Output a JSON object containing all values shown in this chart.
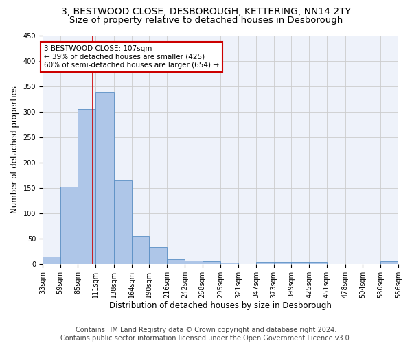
{
  "title1": "3, BESTWOOD CLOSE, DESBOROUGH, KETTERING, NN14 2TY",
  "title2": "Size of property relative to detached houses in Desborough",
  "xlabel": "Distribution of detached houses by size in Desborough",
  "ylabel": "Number of detached properties",
  "footer1": "Contains HM Land Registry data © Crown copyright and database right 2024.",
  "footer2": "Contains public sector information licensed under the Open Government Licence v3.0.",
  "bin_edges": [
    33,
    59,
    85,
    111,
    138,
    164,
    190,
    216,
    242,
    268,
    295,
    321,
    347,
    373,
    399,
    425,
    451,
    478,
    504,
    530,
    556
  ],
  "bar_heights": [
    15,
    153,
    305,
    338,
    165,
    55,
    33,
    9,
    7,
    5,
    3,
    0,
    4,
    4,
    4,
    4,
    0,
    0,
    0,
    5
  ],
  "bin_labels": [
    "33sqm",
    "59sqm",
    "85sqm",
    "111sqm",
    "138sqm",
    "164sqm",
    "190sqm",
    "216sqm",
    "242sqm",
    "268sqm",
    "295sqm",
    "321sqm",
    "347sqm",
    "373sqm",
    "399sqm",
    "425sqm",
    "451sqm",
    "478sqm",
    "504sqm",
    "530sqm",
    "556sqm"
  ],
  "bar_color": "#aec6e8",
  "bar_edge_color": "#5a8fc4",
  "vline_x": 107,
  "vline_color": "#cc0000",
  "annotation_line1": "3 BESTWOOD CLOSE: 107sqm",
  "annotation_line2": "← 39% of detached houses are smaller (425)",
  "annotation_line3": "60% of semi-detached houses are larger (654) →",
  "annotation_box_color": "#cc0000",
  "ylim": [
    0,
    450
  ],
  "yticks": [
    0,
    50,
    100,
    150,
    200,
    250,
    300,
    350,
    400,
    450
  ],
  "grid_color": "#cccccc",
  "bg_color": "#eef2fa",
  "title_fontsize": 10,
  "subtitle_fontsize": 9.5,
  "axis_label_fontsize": 8.5,
  "tick_fontsize": 7,
  "footer_fontsize": 7,
  "annotation_fontsize": 7.5
}
